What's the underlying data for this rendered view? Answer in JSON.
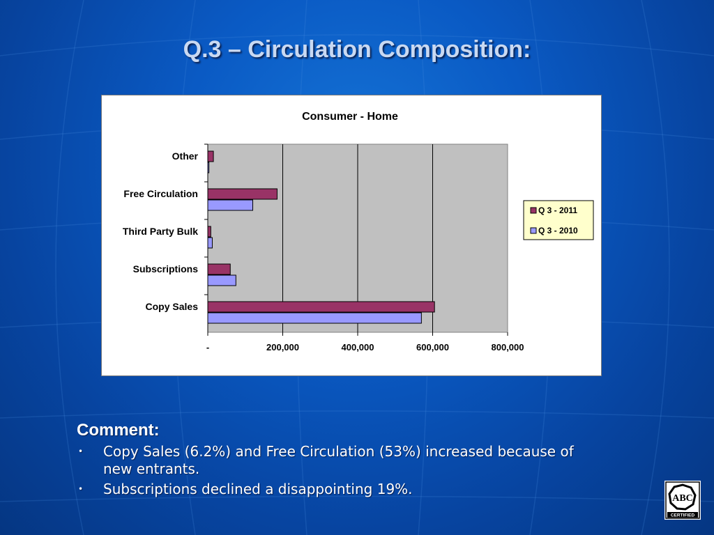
{
  "slide": {
    "title": "Q.3 – Circulation Composition:"
  },
  "comment": {
    "heading": "Comment:",
    "bullets": [
      "Copy Sales (6.2%) and Free Circulation (53%) increased because of new entrants.",
      "Subscriptions declined a disappointing 19%."
    ]
  },
  "logo": {
    "text": "ABC",
    "caption": "CERTIFIED"
  },
  "colors": {
    "series_2011": "#993366",
    "series_2010": "#9999ff",
    "plot_background": "#c0c0c0"
  },
  "chart_data": {
    "type": "bar",
    "orientation": "horizontal",
    "title": "Consumer - Home",
    "categories": [
      "Other",
      "Free Circulation",
      "Third Party Bulk",
      "Subscriptions",
      "Copy Sales"
    ],
    "series": [
      {
        "name": "Q 3 - 2011",
        "values": [
          15000,
          185000,
          8000,
          60000,
          605000
        ]
      },
      {
        "name": "Q 3 - 2010",
        "values": [
          3000,
          120000,
          12000,
          75000,
          570000
        ]
      }
    ],
    "xlim": [
      0,
      800000
    ],
    "x_ticks": [
      0,
      200000,
      400000,
      600000,
      800000
    ],
    "x_tick_labels": [
      "-",
      "200,000",
      "400,000",
      "600,000",
      "800,000"
    ],
    "xlabel": "",
    "ylabel": "",
    "grid": "vertical",
    "legend": "right"
  }
}
